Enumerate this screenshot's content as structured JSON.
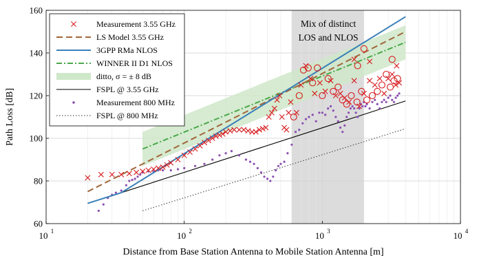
{
  "chart_data": {
    "type": "line",
    "xlabel": "Distance from Base Station Antenna to Mobile Station Antenna [m]",
    "ylabel": "Path Loss [dB]",
    "xscale": "log",
    "xlim": [
      10,
      10000
    ],
    "ylim": [
      60,
      160
    ],
    "grid": true,
    "legend_placement": "top-left",
    "x_tick_labels": [
      {
        "base": "10",
        "exp": "1"
      },
      {
        "base": "10",
        "exp": "2"
      },
      {
        "base": "10",
        "exp": "3"
      },
      {
        "base": "10",
        "exp": "4"
      }
    ],
    "y_ticks": [
      60,
      80,
      100,
      120,
      140,
      160
    ],
    "y_tick_labels": [
      "60",
      "80",
      "100",
      "120",
      "140",
      "160"
    ],
    "annotation": {
      "lines": [
        "Mix of distinct",
        "LOS and NLOS"
      ],
      "x_range": [
        600,
        2000
      ]
    },
    "colors": {
      "measurement_355": "#d7191c",
      "ls_model": "#a0663a",
      "rma_nlos": "#3a7fb8",
      "winner": "#4aa84a",
      "band": "#cfe8c9",
      "fspl_355": "#000000",
      "measurement_800": "#8a4fb0",
      "fspl_800": "#333333",
      "shade": "#dcdcdc"
    },
    "legend": [
      {
        "label": "Measurement 3.55 GHz",
        "key": "measurement_355"
      },
      {
        "label": "LS Model 3.55 GHz",
        "key": "ls_model"
      },
      {
        "label": "3GPP RMa NLOS",
        "key": "rma_nlos"
      },
      {
        "label": "WINNER II D1 NLOS",
        "key": "winner"
      },
      {
        "label": "ditto, σ = ± 8 dB",
        "key": "band"
      },
      {
        "label": "FSPL @ 3.55 GHz",
        "key": "fspl_355"
      },
      {
        "label": "Measurement 800 MHz",
        "key": "measurement_800"
      },
      {
        "label": "FSPL @ 800 MHz",
        "key": "fspl_800"
      }
    ],
    "series": [
      {
        "name": "LS Model 3.55 GHz",
        "x": [
          20,
          4000
        ],
        "y": [
          75,
          150
        ]
      },
      {
        "name": "3GPP RMa NLOS",
        "x": [
          20,
          35,
          4000
        ],
        "y": [
          69.5,
          74.5,
          157
        ]
      },
      {
        "name": "WINNER II D1 NLOS",
        "x": [
          50,
          4000
        ],
        "y": [
          95,
          145
        ]
      },
      {
        "name": "ditto, σ = ± 8 dB",
        "x": [
          50,
          4000
        ],
        "y_low": [
          87,
          137
        ],
        "y_high": [
          103,
          153
        ]
      },
      {
        "name": "FSPL @ 3.55 GHz",
        "x": [
          20,
          35,
          4000
        ],
        "y": [
          69.5,
          74.5,
          117.5
        ]
      },
      {
        "name": "FSPL @ 800 MHz",
        "x": [
          50,
          4000
        ],
        "y": [
          66,
          104.5
        ]
      },
      {
        "name": "Measurement 3.55 GHz",
        "x": [
          20,
          25,
          30,
          35,
          40,
          45,
          50,
          55,
          60,
          65,
          70,
          75,
          80,
          90,
          100,
          110,
          120,
          130,
          140,
          150,
          160,
          170,
          180,
          190,
          200,
          215,
          230,
          250,
          270,
          290,
          310,
          330,
          350,
          370,
          390,
          410,
          430,
          450,
          470,
          490,
          510,
          530,
          550,
          570,
          590,
          620,
          650,
          680,
          700,
          730,
          760,
          790,
          820,
          850,
          880,
          920,
          960,
          1000,
          1050,
          1100,
          1150,
          1200,
          1250,
          1300,
          1350,
          1400,
          1450,
          1500,
          1560,
          1620,
          1700,
          1780,
          1850,
          1920,
          2000,
          2100,
          2200,
          2300,
          2400,
          2500,
          2600,
          2700,
          2800,
          2900,
          3000,
          3100,
          3200,
          3300,
          3400,
          3500,
          3600,
          3200,
          3450,
          2000,
          1700,
          1800,
          2200
        ],
        "y": [
          81.5,
          83,
          83,
          83,
          83.5,
          84,
          84.5,
          85,
          85.5,
          86,
          86.5,
          87.5,
          88.5,
          90,
          92,
          93.5,
          95,
          96.5,
          98,
          99,
          100,
          101,
          101.5,
          102,
          103,
          103.5,
          104,
          104,
          104,
          103.5,
          103,
          103,
          104,
          104.5,
          105,
          110,
          112,
          114,
          118,
          120,
          110,
          105,
          104,
          112,
          117,
          110,
          112,
          120,
          125,
          132,
          134,
          133,
          128,
          126,
          121,
          133,
          126,
          120,
          122,
          128,
          127,
          122,
          120,
          124,
          121,
          118,
          119,
          116,
          117,
          120,
          127,
          117,
          115,
          122,
          121,
          118,
          127,
          120,
          125,
          122,
          128,
          125,
          121,
          130,
          128,
          124,
          130,
          127,
          125,
          128,
          126,
          137,
          134,
          142,
          137,
          134,
          136
        ]
      },
      {
        "name": "Measurement 800 MHz",
        "x": [
          24,
          26,
          28,
          30,
          32,
          35,
          38,
          40,
          42,
          44,
          46,
          48,
          50,
          55,
          60,
          65,
          70,
          80,
          90,
          100,
          120,
          140,
          160,
          180,
          200,
          220,
          250,
          280,
          300,
          320,
          340,
          360,
          380,
          400,
          420,
          440,
          460,
          480,
          500,
          530,
          560,
          600,
          640,
          680,
          720,
          760,
          800,
          850,
          900,
          950,
          1000,
          1050,
          1100,
          1150,
          1200,
          1250,
          1300,
          1350,
          1400,
          1450,
          1500,
          1550,
          1600,
          1650,
          1700,
          1750,
          1800,
          1850,
          1900,
          1950,
          2000,
          2050,
          2100,
          2200,
          2300,
          2400,
          2500,
          2600,
          2700,
          2800,
          2900,
          3000,
          3100,
          3200,
          3300,
          3400,
          3500,
          3600
        ],
        "y": [
          66,
          69,
          72,
          73.5,
          74.5,
          75.5,
          78,
          80,
          80.5,
          81,
          82,
          83,
          84,
          84.5,
          84.5,
          85,
          85,
          85,
          85.5,
          86,
          87,
          88,
          90,
          92,
          93,
          94,
          92,
          90,
          89,
          88,
          86,
          84,
          82,
          81,
          80,
          82,
          85,
          87,
          88,
          89,
          93,
          97,
          103,
          104,
          107,
          109,
          110,
          111,
          108,
          112,
          112,
          111,
          114,
          115,
          113,
          110,
          108,
          105,
          103,
          106,
          110,
          112,
          114,
          115,
          114,
          112,
          110,
          114,
          116,
          115,
          117,
          115,
          116,
          114,
          117,
          118,
          116,
          114,
          117,
          118,
          117,
          119,
          120,
          118,
          117,
          119,
          120,
          121
        ]
      }
    ]
  }
}
